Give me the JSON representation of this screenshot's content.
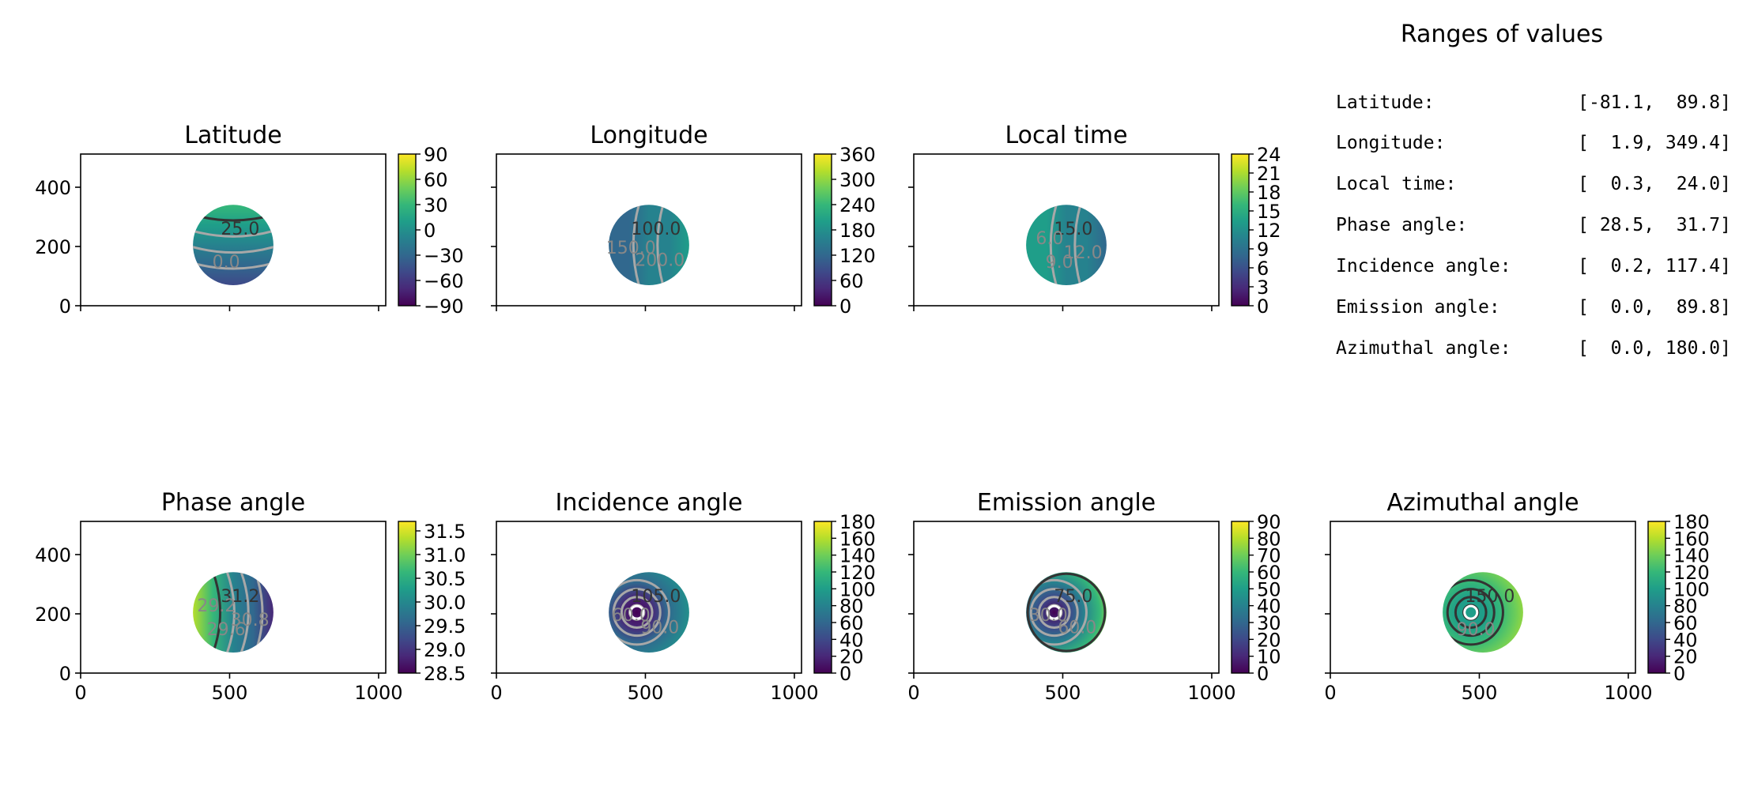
{
  "colors": {
    "viridis": [
      "#440154",
      "#482878",
      "#3e4989",
      "#31688e",
      "#26828e",
      "#1f9e89",
      "#35b779",
      "#6ece58",
      "#b5de2b",
      "#fde725"
    ],
    "contour_gray": "#a8a8a8",
    "contour_dark": "#333333"
  },
  "ranges": {
    "title": "Ranges of values",
    "rows": [
      {
        "label": "Latitude:",
        "value": "[-81.1,  89.8]"
      },
      {
        "label": "Longitude:",
        "value": "[  1.9, 349.4]"
      },
      {
        "label": "Local time:",
        "value": "[  0.3,  24.0]"
      },
      {
        "label": "Phase angle:",
        "value": "[ 28.5,  31.7]"
      },
      {
        "label": "Incidence angle:",
        "value": "[  0.2, 117.4]"
      },
      {
        "label": "Emission angle:",
        "value": "[  0.0,  89.8]"
      },
      {
        "label": "Azimuthal angle:",
        "value": "[  0.0, 180.0]"
      }
    ]
  },
  "chart_data": [
    {
      "type": "heatmap",
      "title": "Latitude",
      "xlim": [
        0,
        1024
      ],
      "ylim": [
        0,
        512
      ],
      "x_ticks": [
        "",
        "",
        ""
      ],
      "y_ticks": [
        "0",
        "200",
        "400"
      ],
      "colorbar": {
        "min": -90,
        "max": 90,
        "ticks": [
          "-90",
          "-60",
          "-30",
          "0",
          "30",
          "60",
          "90"
        ]
      },
      "disk_center": [
        512,
        205
      ],
      "disk_radius": 135,
      "contour_labels": [
        "25.0",
        "0.0"
      ]
    },
    {
      "type": "heatmap",
      "title": "Longitude",
      "xlim": [
        0,
        1024
      ],
      "ylim": [
        0,
        512
      ],
      "x_ticks": [
        "",
        "",
        ""
      ],
      "y_ticks": [
        "",
        "",
        ""
      ],
      "colorbar": {
        "min": 0,
        "max": 360,
        "ticks": [
          "0",
          "60",
          "120",
          "180",
          "240",
          "300",
          "360"
        ]
      },
      "disk_center": [
        512,
        205
      ],
      "disk_radius": 135,
      "contour_labels": [
        "100.0",
        "200.0",
        "150.0"
      ]
    },
    {
      "type": "heatmap",
      "title": "Local time",
      "xlim": [
        0,
        1024
      ],
      "ylim": [
        0,
        512
      ],
      "x_ticks": [
        "",
        "",
        ""
      ],
      "y_ticks": [
        "",
        "",
        ""
      ],
      "colorbar": {
        "min": 0,
        "max": 24,
        "ticks": [
          "0",
          "3",
          "6",
          "9",
          "12",
          "15",
          "18",
          "21",
          "24"
        ]
      },
      "disk_center": [
        512,
        205
      ],
      "disk_radius": 135,
      "contour_labels": [
        "15.0",
        "12.0",
        "9.0",
        "6.0"
      ]
    },
    {
      "type": "heatmap",
      "title": "Phase angle",
      "xlim": [
        0,
        1024
      ],
      "ylim": [
        0,
        512
      ],
      "x_ticks": [
        "0",
        "500",
        "1000"
      ],
      "y_ticks": [
        "0",
        "200",
        "400"
      ],
      "colorbar": {
        "min": 28.5,
        "max": 31.7,
        "ticks": [
          "28.5",
          "29.0",
          "29.5",
          "30.0",
          "30.5",
          "31.0",
          "31.5"
        ]
      },
      "disk_center": [
        512,
        205
      ],
      "disk_radius": 135,
      "contour_labels": [
        "31.2",
        "30.8",
        "29.6",
        "29.2"
      ]
    },
    {
      "type": "heatmap",
      "title": "Incidence angle",
      "xlim": [
        0,
        1024
      ],
      "ylim": [
        0,
        512
      ],
      "x_ticks": [
        "0",
        "500",
        "1000"
      ],
      "y_ticks": [
        "",
        "",
        ""
      ],
      "colorbar": {
        "min": 0,
        "max": 180,
        "ticks": [
          "0",
          "20",
          "40",
          "60",
          "80",
          "100",
          "120",
          "140",
          "160",
          "180"
        ]
      },
      "disk_center": [
        512,
        205
      ],
      "disk_radius": 135,
      "contour_labels": [
        "105.0",
        "90.0",
        "60.0"
      ]
    },
    {
      "type": "heatmap",
      "title": "Emission angle",
      "xlim": [
        0,
        1024
      ],
      "ylim": [
        0,
        512
      ],
      "x_ticks": [
        "0",
        "500",
        "1000"
      ],
      "y_ticks": [
        "",
        "",
        ""
      ],
      "colorbar": {
        "min": 0,
        "max": 90,
        "ticks": [
          "0",
          "10",
          "20",
          "30",
          "40",
          "50",
          "60",
          "70",
          "80",
          "90"
        ]
      },
      "disk_center": [
        512,
        205
      ],
      "disk_radius": 135,
      "contour_labels": [
        "75.0",
        "60.0",
        "30.0"
      ]
    },
    {
      "type": "heatmap",
      "title": "Azimuthal angle",
      "xlim": [
        0,
        1024
      ],
      "ylim": [
        0,
        512
      ],
      "x_ticks": [
        "0",
        "500",
        "1000"
      ],
      "y_ticks": [
        "",
        "",
        ""
      ],
      "colorbar": {
        "min": 0,
        "max": 180,
        "ticks": [
          "0",
          "20",
          "40",
          "60",
          "80",
          "100",
          "120",
          "140",
          "160",
          "180"
        ]
      },
      "disk_center": [
        512,
        205
      ],
      "disk_radius": 135,
      "contour_labels": [
        "150.0",
        "90.0"
      ]
    }
  ]
}
